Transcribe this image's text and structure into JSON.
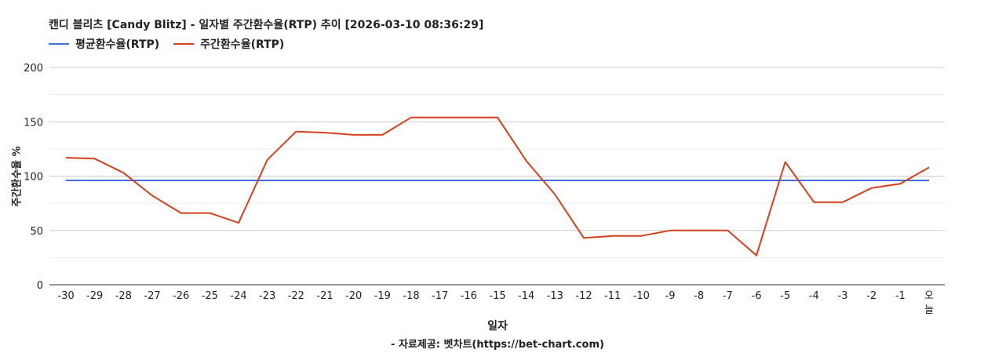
{
  "chart_data": {
    "type": "line",
    "title": "캔디 블리츠 [Candy Blitz] - 일자별 주간환수율(RTP) 추이 [2026-03-10 08:36:29]",
    "xlabel": "일자",
    "ylabel": "주간환수율 %",
    "source": "- 자료제공: 벳차트(https://bet-chart.com)",
    "ylim": [
      0,
      200
    ],
    "yticks": [
      "200",
      "150",
      "100",
      "50",
      "0"
    ],
    "grid": true,
    "legend_position": "top-left",
    "categories": [
      "-30",
      "-29",
      "-28",
      "-27",
      "-26",
      "-25",
      "-24",
      "-23",
      "-22",
      "-21",
      "-20",
      "-19",
      "-18",
      "-17",
      "-16",
      "-15",
      "-14",
      "-13",
      "-12",
      "-11",
      "-10",
      "-9",
      "-8",
      "-7",
      "-6",
      "-5",
      "-4",
      "-3",
      "-2",
      "-1",
      "오늘"
    ],
    "series": [
      {
        "name": "평균환수율(RTP)",
        "color": "#3c6fdc",
        "values": [
          96,
          96,
          96,
          96,
          96,
          96,
          96,
          96,
          96,
          96,
          96,
          96,
          96,
          96,
          96,
          96,
          96,
          96,
          96,
          96,
          96,
          96,
          96,
          96,
          96,
          96,
          96,
          96,
          96,
          96,
          96
        ]
      },
      {
        "name": "주간환수율(RTP)",
        "color": "#d4401c",
        "values": [
          117,
          116,
          103,
          82,
          66,
          66,
          57,
          115,
          141,
          140,
          138,
          138,
          154,
          154,
          154,
          154,
          114,
          83,
          43,
          45,
          45,
          50,
          50,
          50,
          27,
          113,
          76,
          76,
          89,
          93,
          108
        ]
      }
    ]
  }
}
